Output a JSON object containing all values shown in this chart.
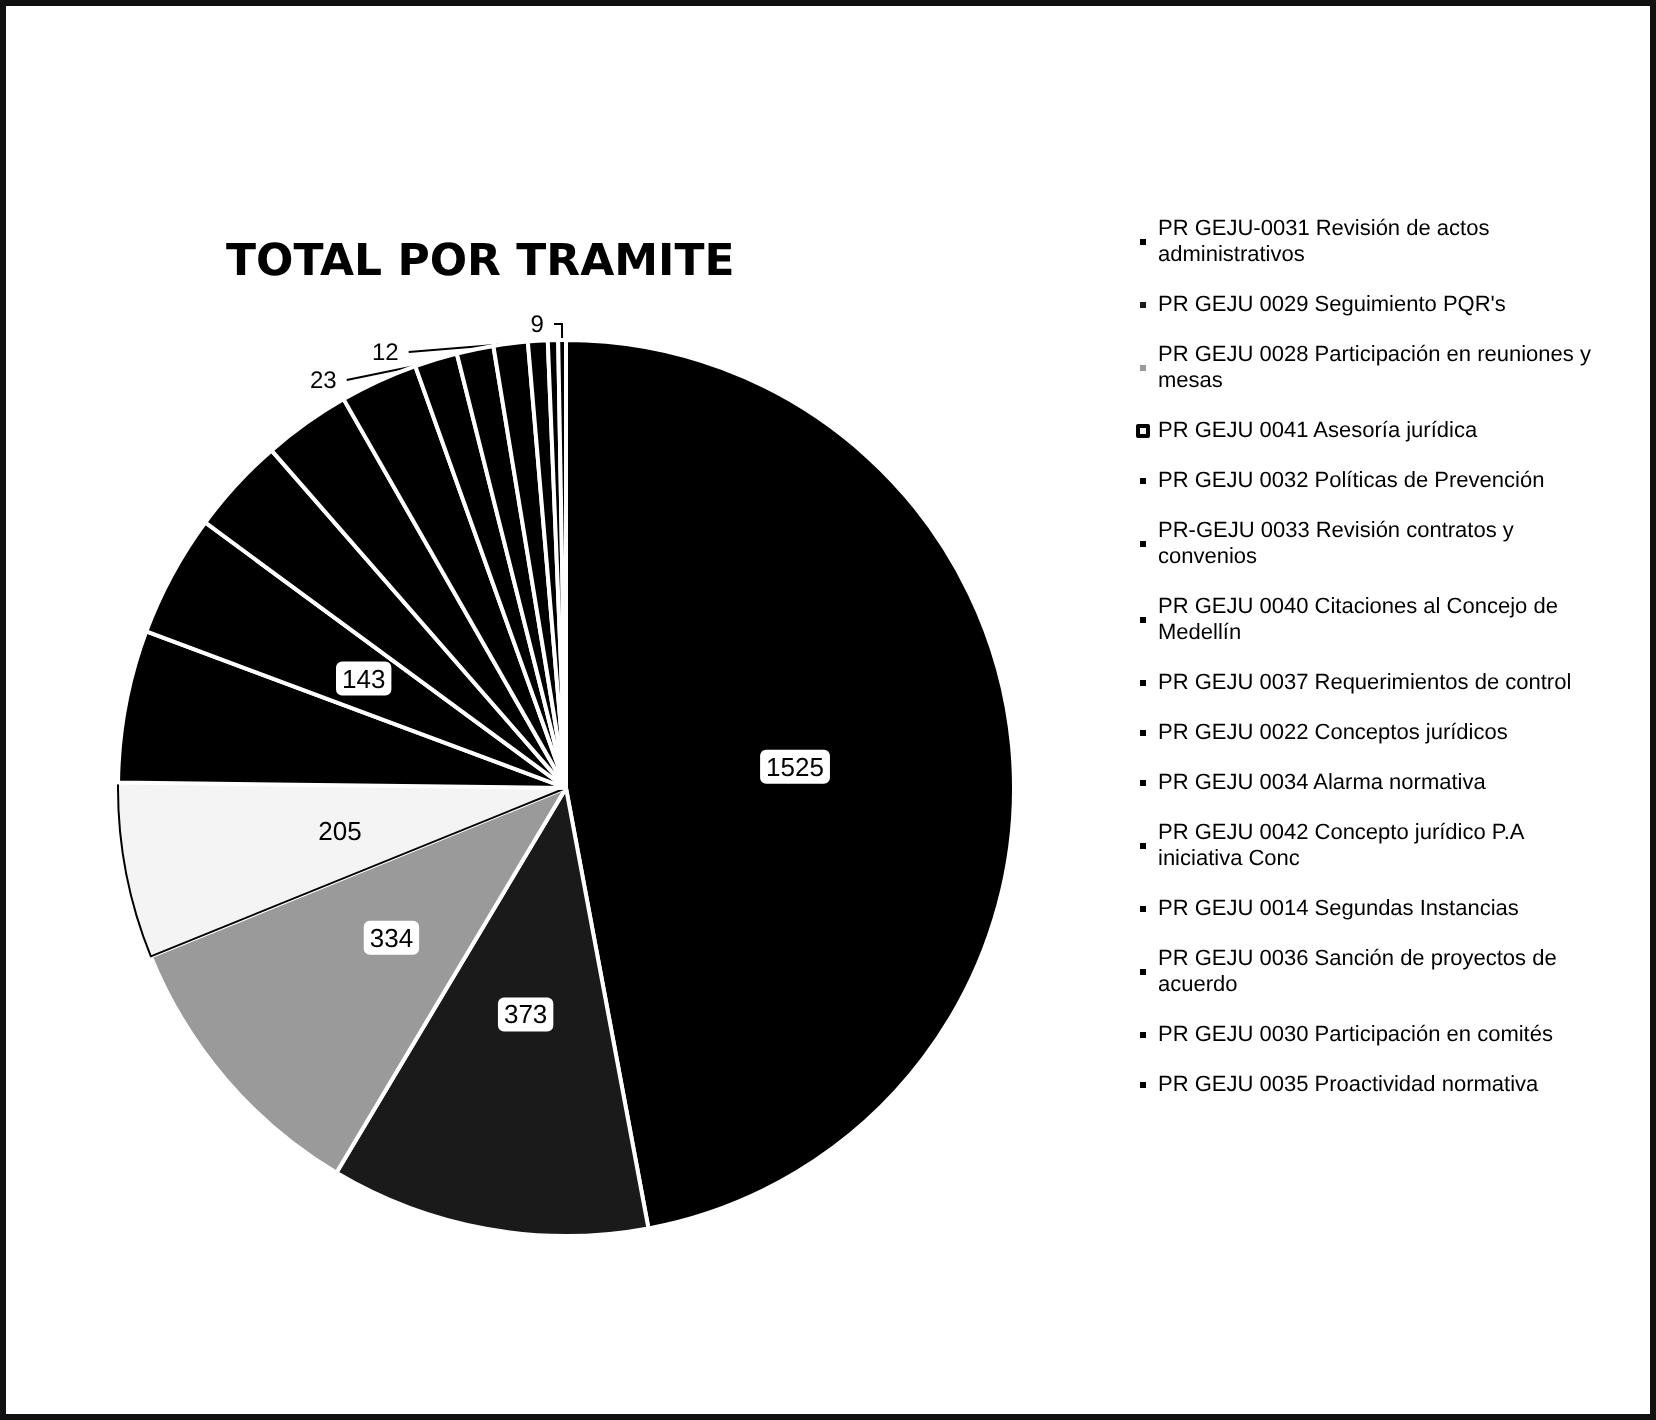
{
  "chart_data": {
    "type": "pie",
    "title": "TOTAL POR TRAMITE",
    "categories": [
      "PR GEJU-0031 Revisión de actos administrativos",
      "PR GEJU 0029 Seguimiento PQR's",
      "PR GEJU 0028 Participación en reuniones y mesas",
      "PR GEJU 0041 Asesoría jurídica",
      "PR GEJU 0032 Políticas de Prevención",
      "PR-GEJU 0033 Revisión contratos y convenios",
      "PR GEJU 0040 Citaciones al Concejo de Medellín",
      "PR GEJU 0037 Requerimientos de control",
      "PR GEJU 0022 Conceptos jurídicos",
      "PR GEJU 0034 Alarma normativa",
      "PR GEJU 0042 Concepto jurídico P.A iniciativa Conc",
      "PR GEJU 0014 Segundas Instancias",
      "PR GEJU 0036 Sanción de proyectos de acuerdo",
      "PR GEJU 0030 Participación en comités",
      "PR GEJU 0035 Proactividad normativa"
    ],
    "values": [
      1525,
      373,
      334,
      205,
      178,
      143,
      113,
      102,
      91,
      50,
      43,
      40,
      23,
      12,
      9
    ],
    "value_labels": [
      "1525",
      "373",
      "334",
      "205",
      null,
      "143",
      null,
      null,
      null,
      null,
      null,
      null,
      "23",
      "12",
      "9"
    ],
    "colors": [
      "#000000",
      "#1a1a1a",
      "#9a9a9a",
      "#f4f4f4",
      "#000000",
      "#000000",
      "#000000",
      "#000000",
      "#000000",
      "#000000",
      "#000000",
      "#000000",
      "#000000",
      "#000000",
      "#000000"
    ],
    "legend": "right"
  }
}
